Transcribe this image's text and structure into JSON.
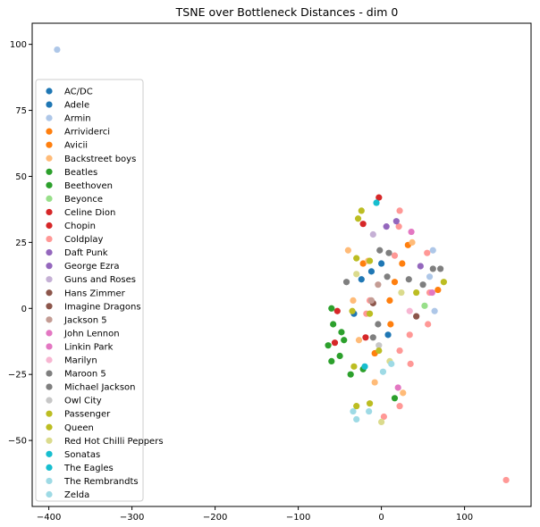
{
  "chart_data": {
    "type": "scatter",
    "title": "TSNE over Bottleneck Distances - dim 0",
    "xlabel": "",
    "ylabel": "",
    "xlim": [
      -420,
      180
    ],
    "ylim": [
      -75,
      108
    ],
    "xticks": [
      -400,
      -300,
      -200,
      -100,
      0,
      100
    ],
    "yticks": [
      -50,
      -25,
      0,
      25,
      50,
      75,
      100
    ],
    "grid": false,
    "legend_position": "left",
    "series": [
      {
        "name": "AC/DC",
        "color": "#1f77b4",
        "points": [
          [
            -33,
            -2
          ]
        ]
      },
      {
        "name": "Adele",
        "color": "#1f77b4",
        "points": [
          [
            -24,
            11
          ],
          [
            -12,
            14
          ],
          [
            0,
            17
          ],
          [
            8,
            -10
          ]
        ]
      },
      {
        "name": "Armin",
        "color": "#aec7e8",
        "points": [
          [
            -390,
            98
          ],
          [
            62,
            22
          ],
          [
            58,
            12
          ],
          [
            64,
            -1
          ]
        ]
      },
      {
        "name": "Arrividerci",
        "color": "#ff7f0e",
        "points": [
          [
            -22,
            17
          ],
          [
            25,
            17
          ],
          [
            16,
            10
          ],
          [
            10,
            3
          ]
        ]
      },
      {
        "name": "Avicii",
        "color": "#ff7f0e",
        "points": [
          [
            32,
            24
          ],
          [
            68,
            7
          ],
          [
            11,
            -6
          ],
          [
            -8,
            -17
          ]
        ]
      },
      {
        "name": "Backstreet boys",
        "color": "#ffbb78",
        "points": [
          [
            -40,
            22
          ],
          [
            37,
            25
          ],
          [
            -16,
            18
          ],
          [
            -34,
            3
          ],
          [
            -27,
            -12
          ],
          [
            -8,
            -28
          ],
          [
            26,
            -32
          ]
        ]
      },
      {
        "name": "Beatles",
        "color": "#2ca02c",
        "points": [
          [
            -60,
            0
          ],
          [
            -58,
            -6
          ],
          [
            -48,
            -9
          ],
          [
            -45,
            -12
          ],
          [
            -64,
            -14
          ],
          [
            -50,
            -18
          ],
          [
            -60,
            -20
          ]
        ]
      },
      {
        "name": "Beethoven",
        "color": "#2ca02c",
        "points": [
          [
            -37,
            -25
          ],
          [
            -22,
            -23
          ],
          [
            16,
            -34
          ]
        ]
      },
      {
        "name": "Beyonce",
        "color": "#98df8a",
        "points": [
          [
            52,
            1
          ]
        ]
      },
      {
        "name": "Celine Dion",
        "color": "#d62728",
        "points": [
          [
            -3,
            42
          ],
          [
            -22,
            32
          ],
          [
            -53,
            -1
          ],
          [
            -56,
            -13
          ],
          [
            -19,
            -11
          ]
        ]
      },
      {
        "name": "Chopin",
        "color": "#d62728",
        "points": []
      },
      {
        "name": "Coldplay",
        "color": "#ff9896",
        "points": [
          [
            22,
            37
          ],
          [
            21,
            31
          ],
          [
            55,
            21
          ],
          [
            16,
            20
          ],
          [
            -18,
            -2
          ],
          [
            58,
            6
          ],
          [
            56,
            -6
          ],
          [
            34,
            -10
          ],
          [
            22,
            -16
          ],
          [
            35,
            -21
          ],
          [
            -14,
            3
          ],
          [
            22,
            -37
          ],
          [
            3,
            -41
          ],
          [
            150,
            -65
          ]
        ]
      },
      {
        "name": "Daft Punk",
        "color": "#9467bd",
        "points": [
          [
            6,
            31
          ],
          [
            18,
            33
          ],
          [
            47,
            16
          ]
        ]
      },
      {
        "name": "George Ezra",
        "color": "#9467bd",
        "points": []
      },
      {
        "name": "Guns and Roses",
        "color": "#c5b0d5",
        "points": [
          [
            -10,
            28
          ]
        ]
      },
      {
        "name": "Hans Zimmer",
        "color": "#8c564b",
        "points": [
          [
            -10,
            2
          ],
          [
            42,
            -3
          ]
        ]
      },
      {
        "name": "Imagine Dragons",
        "color": "#8c564b",
        "points": []
      },
      {
        "name": "Jackson 5",
        "color": "#c49c94",
        "points": [
          [
            -4,
            9
          ],
          [
            -12,
            3
          ]
        ]
      },
      {
        "name": "John Lennon",
        "color": "#e377c2",
        "points": [
          [
            36,
            29
          ],
          [
            20,
            -30
          ]
        ]
      },
      {
        "name": "Linkin Park",
        "color": "#e377c2",
        "points": [
          [
            61,
            6
          ]
        ]
      },
      {
        "name": "Marilyn",
        "color": "#f7b6d2",
        "points": [
          [
            34,
            -1
          ]
        ]
      },
      {
        "name": "Maroon 5",
        "color": "#7f7f7f",
        "points": [
          [
            -2,
            22
          ],
          [
            9,
            21
          ],
          [
            71,
            15
          ],
          [
            -42,
            10
          ],
          [
            7,
            12
          ],
          [
            33,
            11
          ],
          [
            50,
            9
          ],
          [
            -4,
            -6
          ],
          [
            -10,
            -11
          ]
        ]
      },
      {
        "name": "Michael Jackson",
        "color": "#7f7f7f",
        "points": [
          [
            62,
            15
          ]
        ]
      },
      {
        "name": "Owl City",
        "color": "#c7c7c7",
        "points": [
          [
            -3,
            -14
          ]
        ]
      },
      {
        "name": "Passenger",
        "color": "#bcbd22",
        "points": [
          [
            -24,
            37
          ],
          [
            -28,
            34
          ],
          [
            -30,
            19
          ],
          [
            -14,
            18
          ],
          [
            -14,
            -2
          ],
          [
            -30,
            -37
          ],
          [
            -14,
            -36
          ],
          [
            42,
            6
          ]
        ]
      },
      {
        "name": "Queen",
        "color": "#bcbd22",
        "points": [
          [
            -33,
            -22
          ],
          [
            75,
            10
          ],
          [
            -35,
            -1
          ],
          [
            -3,
            -16
          ]
        ]
      },
      {
        "name": "Red Hot Chilli Peppers",
        "color": "#dbdb8d",
        "points": [
          [
            -30,
            13
          ],
          [
            24,
            6
          ],
          [
            10,
            -20
          ],
          [
            0,
            -43
          ]
        ]
      },
      {
        "name": "Sonatas",
        "color": "#17becf",
        "points": [
          [
            -6,
            40
          ],
          [
            -20,
            -22
          ]
        ]
      },
      {
        "name": "The Eagles",
        "color": "#17becf",
        "points": []
      },
      {
        "name": "The Rembrandts",
        "color": "#9edae5",
        "points": [
          [
            12,
            -21
          ],
          [
            2,
            -24
          ]
        ]
      },
      {
        "name": "Zelda",
        "color": "#9edae5",
        "points": [
          [
            -34,
            -39
          ],
          [
            -15,
            -39
          ],
          [
            -30,
            -42
          ]
        ]
      }
    ]
  }
}
